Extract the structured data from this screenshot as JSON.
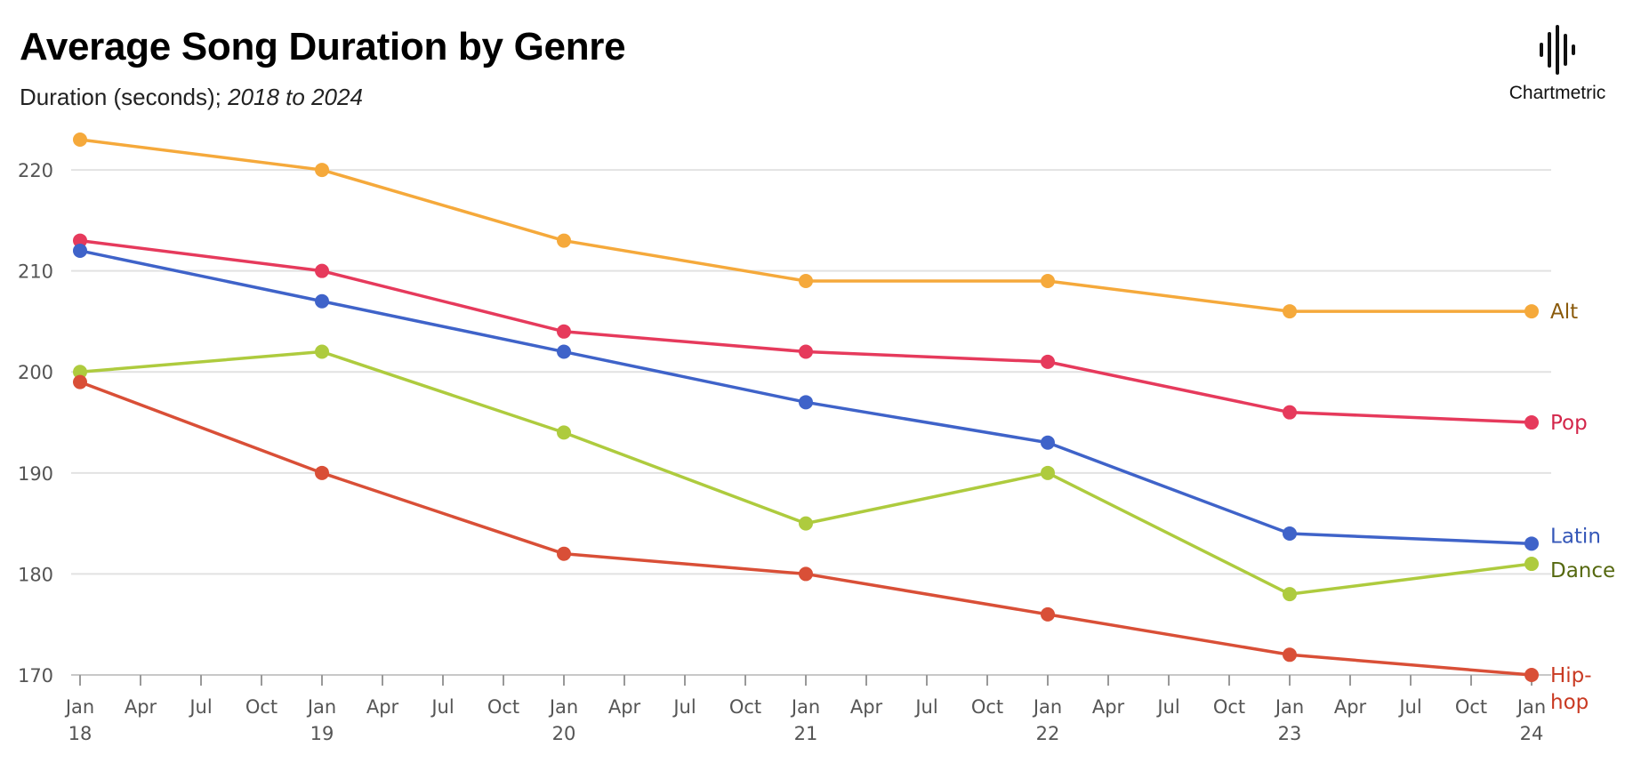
{
  "header": {
    "title": "Average Song Duration by Genre",
    "subtitle_main": "Duration (seconds); ",
    "subtitle_range": "2018 to 2024"
  },
  "logo": {
    "text": "Chartmetric",
    "icon": "sound-wave-icon"
  },
  "chart_data": {
    "type": "line",
    "title": "Average Song Duration by Genre",
    "subtitle": "Duration (seconds); 2018 to 2024",
    "xlabel": "",
    "ylabel": "",
    "x": [
      "Jan 18",
      "Jan 19",
      "Jan 20",
      "Jan 21",
      "Jan 22",
      "Jan 23",
      "Jan 24"
    ],
    "ylim": [
      170,
      223
    ],
    "yticks": [
      170,
      180,
      190,
      200,
      210,
      220
    ],
    "x_tick_labels": [
      {
        "month": "Jan",
        "year": "18"
      },
      {
        "month": "Apr",
        "year": ""
      },
      {
        "month": "Jul",
        "year": ""
      },
      {
        "month": "Oct",
        "year": ""
      },
      {
        "month": "Jan",
        "year": "19"
      },
      {
        "month": "Apr",
        "year": ""
      },
      {
        "month": "Jul",
        "year": ""
      },
      {
        "month": "Oct",
        "year": ""
      },
      {
        "month": "Jan",
        "year": "20"
      },
      {
        "month": "Apr",
        "year": ""
      },
      {
        "month": "Jul",
        "year": ""
      },
      {
        "month": "Oct",
        "year": ""
      },
      {
        "month": "Jan",
        "year": "21"
      },
      {
        "month": "Apr",
        "year": ""
      },
      {
        "month": "Jul",
        "year": ""
      },
      {
        "month": "Oct",
        "year": ""
      },
      {
        "month": "Jan",
        "year": "22"
      },
      {
        "month": "Apr",
        "year": ""
      },
      {
        "month": "Jul",
        "year": ""
      },
      {
        "month": "Oct",
        "year": ""
      },
      {
        "month": "Jan",
        "year": "23"
      },
      {
        "month": "Apr",
        "year": ""
      },
      {
        "month": "Jul",
        "year": ""
      },
      {
        "month": "Oct",
        "year": ""
      },
      {
        "month": "Jan",
        "year": "24"
      }
    ],
    "grid": true,
    "legend": "direct labels at right end of lines",
    "series": [
      {
        "name": "Alt",
        "label_lines": [
          "Alt"
        ],
        "color": "#F5A93B",
        "label_color": "#8A5A0B",
        "values": [
          223,
          220,
          213,
          209,
          209,
          206,
          206
        ]
      },
      {
        "name": "Pop",
        "label_lines": [
          "Pop"
        ],
        "color": "#E63A5C",
        "label_color": "#D3264A",
        "values": [
          213,
          210,
          204,
          202,
          201,
          196,
          195
        ]
      },
      {
        "name": "Latin",
        "label_lines": [
          "Latin"
        ],
        "color": "#3F63C9",
        "label_color": "#3557B8",
        "values": [
          212,
          207,
          202,
          197,
          193,
          184,
          183
        ]
      },
      {
        "name": "Dance",
        "label_lines": [
          "Dance"
        ],
        "color": "#AECB3E",
        "label_color": "#55680F",
        "values": [
          200,
          202,
          194,
          185,
          190,
          178,
          181
        ]
      },
      {
        "name": "Hip-hop",
        "label_lines": [
          "Hip-",
          "hop"
        ],
        "color": "#D94F37",
        "label_color": "#C93A22",
        "values": [
          199,
          190,
          182,
          180,
          176,
          172,
          170
        ]
      }
    ]
  }
}
